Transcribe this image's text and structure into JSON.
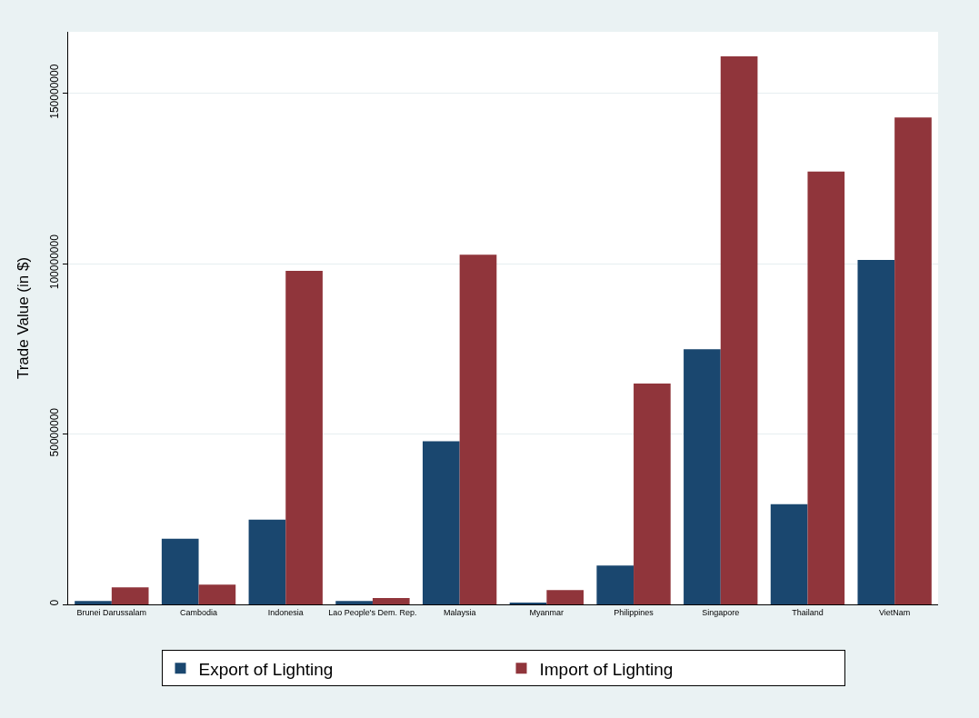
{
  "chart_data": {
    "type": "bar",
    "ylabel": "Trade Value (in $)",
    "categories": [
      "Brunei Darussalam",
      "Cambodia",
      "Indonesia",
      "Lao People's Dem. Rep.",
      "Malaysia",
      "Myanmar",
      "Philippines",
      "Singapore",
      "Thailand",
      "VietNam"
    ],
    "series": [
      {
        "name": "Export of Lighting",
        "color": "#1a476f",
        "values": [
          1000000,
          19300000,
          24900000,
          1000000,
          47900000,
          300000,
          11400000,
          74900000,
          29400000,
          101100000
        ]
      },
      {
        "name": "Import of Lighting",
        "color": "#90353b",
        "values": [
          5000000,
          5800000,
          97900000,
          1900000,
          102600000,
          4200000,
          64800000,
          160800000,
          127000000,
          142900000
        ]
      }
    ],
    "ylim": [
      0,
      168000000
    ],
    "yticks": [
      0,
      50000000,
      100000000,
      150000000
    ],
    "grid": "y",
    "legend": "bottom"
  }
}
